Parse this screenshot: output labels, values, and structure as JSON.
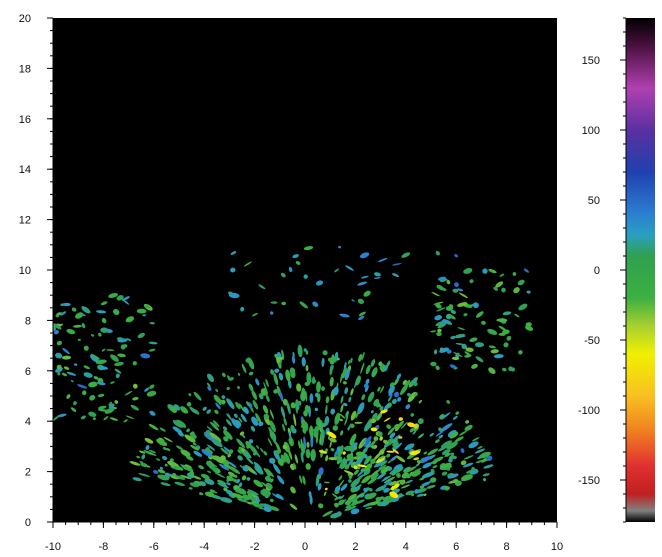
{
  "chart_data": {
    "type": "heatmap",
    "title": "",
    "xlabel": "",
    "ylabel": "",
    "xlim": [
      -10,
      10
    ],
    "ylim": [
      0,
      20
    ],
    "x_ticks": [
      -10,
      -8,
      -6,
      -4,
      -2,
      0,
      2,
      4,
      6,
      8,
      10
    ],
    "y_ticks": [
      0,
      2,
      4,
      6,
      8,
      10,
      12,
      14,
      16,
      18,
      20
    ],
    "background_color": "#000000",
    "colorbar": {
      "range": [
        -180,
        180
      ],
      "ticks": [
        150,
        100,
        50,
        0,
        -50,
        -100,
        -150
      ],
      "colormap_stops": [
        {
          "value": 180,
          "color": "#000000"
        },
        {
          "value": 160,
          "color": "#4a1040"
        },
        {
          "value": 130,
          "color": "#b040b0"
        },
        {
          "value": 100,
          "color": "#5a30a0"
        },
        {
          "value": 70,
          "color": "#2040b0"
        },
        {
          "value": 40,
          "color": "#2b7fd0"
        },
        {
          "value": 25,
          "color": "#2a9fc0"
        },
        {
          "value": 10,
          "color": "#30a050"
        },
        {
          "value": -20,
          "color": "#3cb040"
        },
        {
          "value": -40,
          "color": "#a8d030"
        },
        {
          "value": -60,
          "color": "#f0f000"
        },
        {
          "value": -90,
          "color": "#f8c020"
        },
        {
          "value": -115,
          "color": "#f08020"
        },
        {
          "value": -140,
          "color": "#e03030"
        },
        {
          "value": -160,
          "color": "#c02020"
        },
        {
          "value": -172,
          "color": "#808080"
        },
        {
          "value": -180,
          "color": "#000000"
        }
      ]
    },
    "regions": [
      {
        "name": "central fan",
        "x_range": [
          -6,
          7
        ],
        "y_range": [
          0,
          7
        ],
        "dominant_value": 0
      },
      {
        "name": "left cluster",
        "x_range": [
          -10,
          -6
        ],
        "y_range": [
          4,
          9
        ],
        "dominant_value": 0
      },
      {
        "name": "right cluster",
        "x_range": [
          5,
          9
        ],
        "y_range": [
          6,
          10
        ],
        "dominant_value": 0
      },
      {
        "name": "yellow streak",
        "x_range": [
          0.5,
          5
        ],
        "y_range": [
          1,
          4.5
        ],
        "dominant_value": -45
      },
      {
        "name": "sparse band",
        "x_range": [
          -3,
          6
        ],
        "y_range": [
          8,
          11
        ],
        "dominant_value": 15
      }
    ]
  }
}
